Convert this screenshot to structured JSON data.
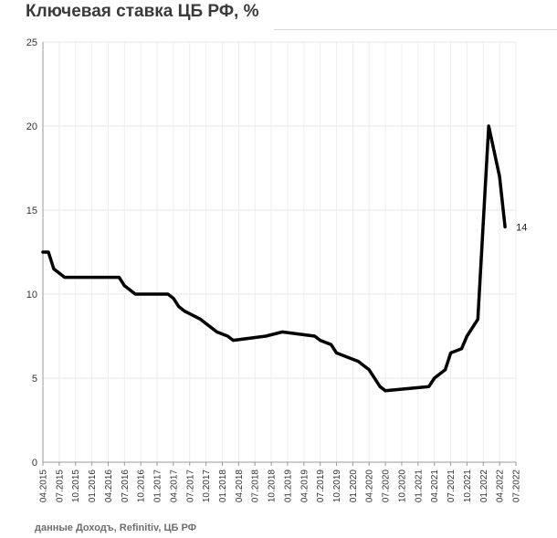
{
  "title": "Ключевая ставка ЦБ РФ, %",
  "source": "данные Доходъ, Refinitiv, ЦБ РФ",
  "chart_data": {
    "type": "line",
    "title": "Ключевая ставка ЦБ РФ, %",
    "xlabel": "",
    "ylabel": "",
    "ylim": [
      0,
      25
    ],
    "yticks": [
      0,
      5,
      10,
      15,
      20,
      25
    ],
    "xticks": [
      "04.2015",
      "07.2015",
      "10.2015",
      "01.2016",
      "04.2016",
      "07.2016",
      "10.2016",
      "01.2017",
      "04.2017",
      "07.2017",
      "10.2017",
      "01.2018",
      "04.2018",
      "07.2018",
      "10.2018",
      "01.2019",
      "04.2019",
      "07.2019",
      "10.2019",
      "01.2020",
      "04.2020",
      "07.2020",
      "10.2020",
      "01.2021",
      "04.2021",
      "07.2021",
      "10.2021",
      "01.2022",
      "04.2022",
      "07.2022"
    ],
    "grid": true,
    "legend": "none",
    "line_color": "#000000",
    "end_label": "14",
    "series": [
      {
        "x": [
          "2015-04",
          "2015-05",
          "2015-06",
          "2015-08",
          "2016-06",
          "2016-07",
          "2016-09",
          "2017-03",
          "2017-04",
          "2017-05",
          "2017-06",
          "2017-09",
          "2017-10",
          "2017-12",
          "2018-02",
          "2018-03",
          "2018-09",
          "2018-12",
          "2019-06",
          "2019-07",
          "2019-09",
          "2019-10",
          "2019-12",
          "2020-02",
          "2020-04",
          "2020-06",
          "2020-07",
          "2021-03",
          "2021-04",
          "2021-06",
          "2021-07",
          "2021-09",
          "2021-10",
          "2021-12",
          "2022-02",
          "2022-04",
          "2022-05"
        ],
        "y": [
          12.5,
          12.5,
          11.5,
          11.0,
          11.0,
          10.5,
          10.0,
          10.0,
          9.75,
          9.25,
          9.0,
          8.5,
          8.25,
          7.75,
          7.5,
          7.25,
          7.5,
          7.75,
          7.5,
          7.25,
          7.0,
          6.5,
          6.25,
          6.0,
          5.5,
          4.5,
          4.25,
          4.5,
          5.0,
          5.5,
          6.5,
          6.75,
          7.5,
          8.5,
          20.0,
          17.0,
          14.0
        ]
      }
    ]
  }
}
